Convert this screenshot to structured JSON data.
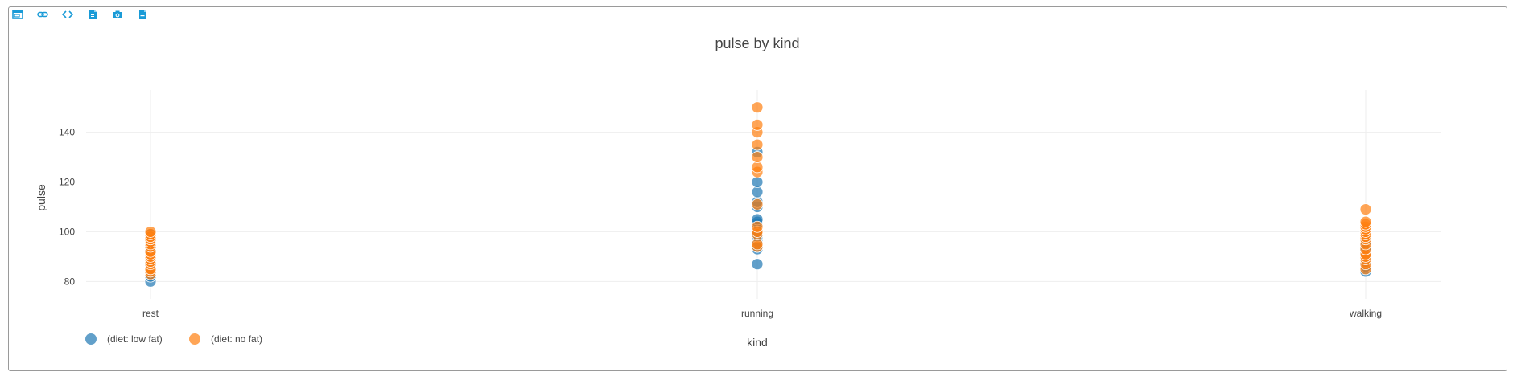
{
  "toolbar": [
    {
      "icon": "window-icon"
    },
    {
      "icon": "link-icon"
    },
    {
      "icon": "code-icon"
    },
    {
      "icon": "html-file-icon"
    },
    {
      "icon": "camera-icon"
    },
    {
      "icon": "csv-file-icon"
    }
  ],
  "chart_data": {
    "type": "scatter",
    "title": "pulse by kind",
    "xlabel": "kind",
    "ylabel": "pulse",
    "categories": [
      "rest",
      "running",
      "walking"
    ],
    "ylim": [
      73,
      157
    ],
    "yticks": [
      80,
      100,
      120,
      140
    ],
    "grid": true,
    "legend_position": "bottom-left",
    "series": [
      {
        "name": "(diet: low fat)",
        "color": "#1f77b4",
        "points": [
          {
            "x": "rest",
            "y": 80
          },
          {
            "x": "rest",
            "y": 82
          },
          {
            "x": "rest",
            "y": 83
          },
          {
            "x": "rest",
            "y": 84
          },
          {
            "x": "rest",
            "y": 85
          },
          {
            "x": "rest",
            "y": 86
          },
          {
            "x": "rest",
            "y": 87
          },
          {
            "x": "rest",
            "y": 88
          },
          {
            "x": "rest",
            "y": 90
          },
          {
            "x": "rest",
            "y": 91
          },
          {
            "x": "rest",
            "y": 92
          },
          {
            "x": "rest",
            "y": 93
          },
          {
            "x": "rest",
            "y": 95
          },
          {
            "x": "rest",
            "y": 96
          },
          {
            "x": "rest",
            "y": 97
          },
          {
            "x": "rest",
            "y": 99
          },
          {
            "x": "running",
            "y": 87
          },
          {
            "x": "running",
            "y": 93
          },
          {
            "x": "running",
            "y": 94
          },
          {
            "x": "running",
            "y": 96
          },
          {
            "x": "running",
            "y": 98
          },
          {
            "x": "running",
            "y": 100
          },
          {
            "x": "running",
            "y": 103
          },
          {
            "x": "running",
            "y": 104
          },
          {
            "x": "running",
            "y": 105
          },
          {
            "x": "running",
            "y": 110
          },
          {
            "x": "running",
            "y": 112
          },
          {
            "x": "running",
            "y": 116
          },
          {
            "x": "running",
            "y": 120
          },
          {
            "x": "running",
            "y": 132
          },
          {
            "x": "walking",
            "y": 84
          },
          {
            "x": "walking",
            "y": 86
          },
          {
            "x": "walking",
            "y": 88
          },
          {
            "x": "walking",
            "y": 90
          },
          {
            "x": "walking",
            "y": 92
          },
          {
            "x": "walking",
            "y": 93
          },
          {
            "x": "walking",
            "y": 95
          },
          {
            "x": "walking",
            "y": 96
          },
          {
            "x": "walking",
            "y": 98
          },
          {
            "x": "walking",
            "y": 100
          }
        ]
      },
      {
        "name": "(diet: no fat)",
        "color": "#ff7f0e",
        "points": [
          {
            "x": "rest",
            "y": 83
          },
          {
            "x": "rest",
            "y": 84
          },
          {
            "x": "rest",
            "y": 85
          },
          {
            "x": "rest",
            "y": 87
          },
          {
            "x": "rest",
            "y": 88
          },
          {
            "x": "rest",
            "y": 89
          },
          {
            "x": "rest",
            "y": 90
          },
          {
            "x": "rest",
            "y": 91
          },
          {
            "x": "rest",
            "y": 92
          },
          {
            "x": "rest",
            "y": 94
          },
          {
            "x": "rest",
            "y": 95
          },
          {
            "x": "rest",
            "y": 96
          },
          {
            "x": "rest",
            "y": 97
          },
          {
            "x": "rest",
            "y": 98
          },
          {
            "x": "rest",
            "y": 99
          },
          {
            "x": "rest",
            "y": 100
          },
          {
            "x": "running",
            "y": 94
          },
          {
            "x": "running",
            "y": 95
          },
          {
            "x": "running",
            "y": 99
          },
          {
            "x": "running",
            "y": 100
          },
          {
            "x": "running",
            "y": 102
          },
          {
            "x": "running",
            "y": 111
          },
          {
            "x": "running",
            "y": 124
          },
          {
            "x": "running",
            "y": 126
          },
          {
            "x": "running",
            "y": 130
          },
          {
            "x": "running",
            "y": 135
          },
          {
            "x": "running",
            "y": 140
          },
          {
            "x": "running",
            "y": 143
          },
          {
            "x": "running",
            "y": 150
          },
          {
            "x": "walking",
            "y": 85
          },
          {
            "x": "walking",
            "y": 87
          },
          {
            "x": "walking",
            "y": 89
          },
          {
            "x": "walking",
            "y": 90
          },
          {
            "x": "walking",
            "y": 91
          },
          {
            "x": "walking",
            "y": 93
          },
          {
            "x": "walking",
            "y": 95
          },
          {
            "x": "walking",
            "y": 97
          },
          {
            "x": "walking",
            "y": 98
          },
          {
            "x": "walking",
            "y": 99
          },
          {
            "x": "walking",
            "y": 100
          },
          {
            "x": "walking",
            "y": 101
          },
          {
            "x": "walking",
            "y": 102
          },
          {
            "x": "walking",
            "y": 103
          },
          {
            "x": "walking",
            "y": 104
          },
          {
            "x": "walking",
            "y": 109
          }
        ]
      }
    ]
  }
}
